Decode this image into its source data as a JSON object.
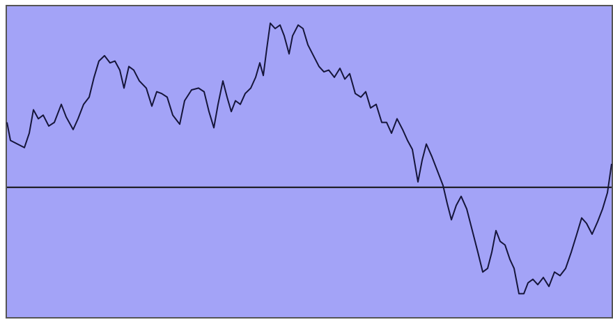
{
  "chart_data": {
    "type": "line",
    "background": "#a3a3f7",
    "color": "#15153a",
    "xlim": [
      0,
      868
    ],
    "ylim": [
      -0.72,
      1
    ],
    "x": [
      0,
      5,
      15,
      25,
      32,
      38,
      45,
      52,
      60,
      68,
      78,
      85,
      95,
      102,
      110,
      118,
      125,
      132,
      140,
      148,
      155,
      162,
      168,
      175,
      182,
      190,
      200,
      208,
      215,
      222,
      230,
      238,
      248,
      255,
      265,
      275,
      283,
      290,
      297,
      303,
      310,
      316,
      322,
      328,
      335,
      342,
      350,
      357,
      363,
      368,
      373,
      378,
      385,
      392,
      398,
      405,
      410,
      418,
      425,
      432,
      440,
      448,
      455,
      462,
      470,
      478,
      485,
      492,
      500,
      508,
      515,
      522,
      530,
      538,
      545,
      552,
      560,
      568,
      575,
      582,
      590,
      596,
      602,
      610,
      618,
      626,
      632,
      638,
      645,
      652,
      660,
      668,
      676,
      683,
      690,
      696,
      702,
      708,
      715,
      722,
      728,
      735,
      742,
      748,
      755,
      762,
      770,
      778,
      786,
      794,
      802,
      810,
      818,
      825,
      832,
      840,
      848,
      855,
      862,
      868
    ],
    "values": [
      0.36,
      0.26,
      0.24,
      0.22,
      0.3,
      0.43,
      0.38,
      0.4,
      0.34,
      0.36,
      0.46,
      0.39,
      0.32,
      0.38,
      0.46,
      0.5,
      0.61,
      0.7,
      0.73,
      0.69,
      0.7,
      0.65,
      0.55,
      0.67,
      0.65,
      0.59,
      0.55,
      0.45,
      0.53,
      0.52,
      0.5,
      0.4,
      0.35,
      0.48,
      0.54,
      0.55,
      0.53,
      0.42,
      0.33,
      0.46,
      0.59,
      0.5,
      0.42,
      0.48,
      0.46,
      0.52,
      0.55,
      0.61,
      0.69,
      0.62,
      0.77,
      0.91,
      0.88,
      0.9,
      0.84,
      0.74,
      0.84,
      0.9,
      0.88,
      0.79,
      0.73,
      0.67,
      0.64,
      0.65,
      0.61,
      0.66,
      0.6,
      0.63,
      0.52,
      0.5,
      0.53,
      0.44,
      0.46,
      0.36,
      0.36,
      0.3,
      0.38,
      0.32,
      0.26,
      0.21,
      0.03,
      0.15,
      0.24,
      0.17,
      0.09,
      0.01,
      -0.09,
      -0.18,
      -0.1,
      -0.05,
      -0.12,
      -0.24,
      -0.36,
      -0.47,
      -0.45,
      -0.36,
      -0.24,
      -0.3,
      -0.32,
      -0.4,
      -0.45,
      -0.59,
      -0.59,
      -0.53,
      -0.51,
      -0.54,
      -0.5,
      -0.55,
      -0.47,
      -0.49,
      -0.45,
      -0.36,
      -0.26,
      -0.17,
      -0.2,
      -0.26,
      -0.19,
      -0.12,
      -0.03,
      0.13
    ]
  }
}
